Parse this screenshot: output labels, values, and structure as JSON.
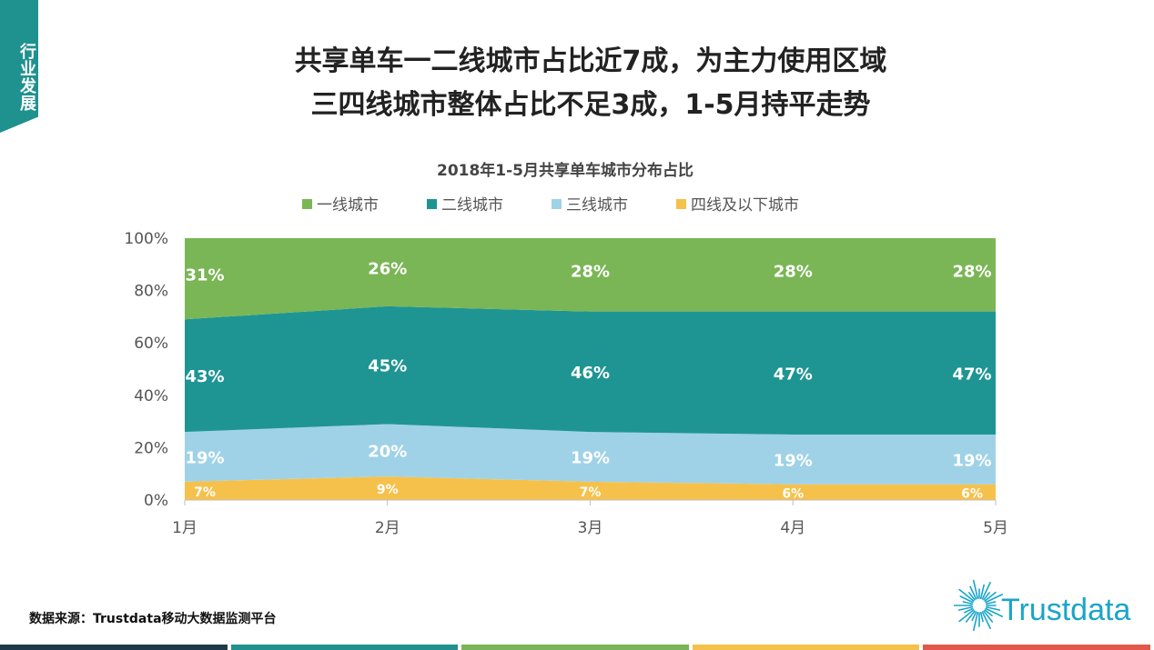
{
  "side_tab": {
    "label": "行业发展"
  },
  "headline": {
    "line1": "共享单车一二线城市占比近7成，为主力使用区域",
    "line2": "三四线城市整体占比不足3成，1-5月持平走势"
  },
  "source_note": "数据来源：Trustdata移动大数据监测平台",
  "brand": {
    "name": "Trustdata"
  },
  "colors": {
    "tier1": "#7ab655",
    "tier2": "#1f9593",
    "tier3": "#9fd2e7",
    "tier4": "#f6c14b",
    "bottom_bars": [
      "#1f3a4a",
      "#1f918e",
      "#7ab655",
      "#f6c14b",
      "#e0594a"
    ]
  },
  "chart_data": {
    "type": "area",
    "stacked": true,
    "title": "2018年1-5月共享单车城市分布占比",
    "categories": [
      "1月",
      "2月",
      "3月",
      "4月",
      "5月"
    ],
    "y_ticks": [
      "0%",
      "20%",
      "40%",
      "60%",
      "80%",
      "100%"
    ],
    "ylim": [
      0,
      100
    ],
    "legend_position": "top",
    "grid": false,
    "series": [
      {
        "name": "四线及以下城市",
        "color": "#f6c14b",
        "values": [
          7,
          9,
          7,
          6,
          6
        ],
        "labels": [
          "7%",
          "9%",
          "7%",
          "6%",
          "6%"
        ]
      },
      {
        "name": "三线城市",
        "color": "#9fd2e7",
        "values": [
          19,
          20,
          19,
          19,
          19
        ],
        "labels": [
          "19%",
          "20%",
          "19%",
          "19%",
          "19%"
        ]
      },
      {
        "name": "二线城市",
        "color": "#1f9593",
        "values": [
          43,
          45,
          46,
          47,
          47
        ],
        "labels": [
          "43%",
          "45%",
          "46%",
          "47%",
          "47%"
        ]
      },
      {
        "name": "一线城市",
        "color": "#7ab655",
        "values": [
          31,
          26,
          28,
          28,
          28
        ],
        "labels": [
          "31%",
          "26%",
          "28%",
          "28%",
          "28%"
        ]
      }
    ],
    "legend_order": [
      "一线城市",
      "二线城市",
      "三线城市",
      "四线及以下城市"
    ]
  }
}
